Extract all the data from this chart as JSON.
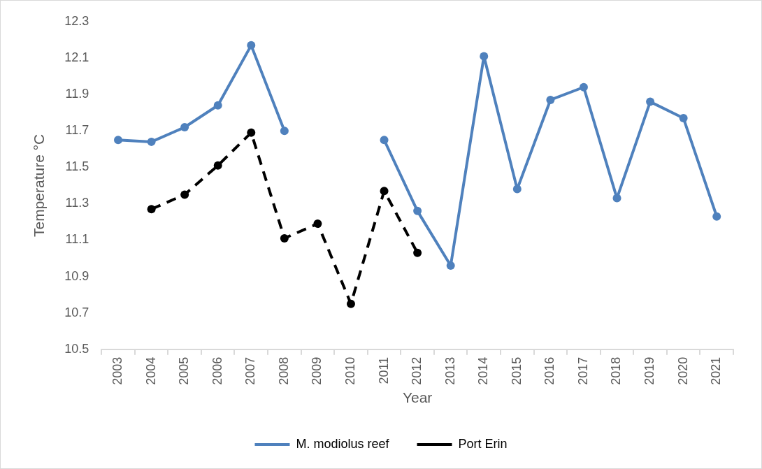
{
  "chart_data": {
    "type": "line",
    "xlabel": "Year",
    "ylabel": "Temperature °C",
    "categories": [
      "2003",
      "2004",
      "2005",
      "2006",
      "2007",
      "2008",
      "2009",
      "2010",
      "2011",
      "2012",
      "2013",
      "2014",
      "2015",
      "2016",
      "2017",
      "2018",
      "2019",
      "2020",
      "2021"
    ],
    "series": [
      {
        "name": "M. modiolus reef",
        "color": "#4f81bd",
        "line_style": "solid",
        "values": [
          11.65,
          11.64,
          11.72,
          11.84,
          12.17,
          11.7,
          null,
          null,
          11.65,
          11.26,
          10.96,
          12.11,
          11.38,
          11.87,
          11.94,
          11.33,
          11.86,
          11.77,
          11.23
        ]
      },
      {
        "name": "Port Erin",
        "color": "#000000",
        "line_style": "dashed",
        "values": [
          null,
          11.27,
          11.35,
          11.51,
          11.69,
          11.11,
          11.19,
          10.75,
          11.37,
          11.03,
          null,
          null,
          null,
          null,
          null,
          null,
          null,
          null,
          null
        ]
      }
    ],
    "ylim": [
      10.5,
      12.3
    ],
    "yticks": [
      10.5,
      10.7,
      10.9,
      11.1,
      11.3,
      11.5,
      11.7,
      11.9,
      12.1,
      12.3
    ],
    "grid": false,
    "legend": "bottom",
    "marker": "circle"
  }
}
